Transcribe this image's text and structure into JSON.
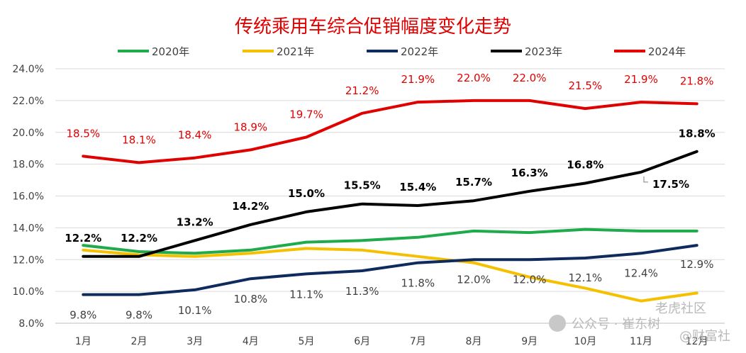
{
  "chart_data": {
    "type": "line",
    "title": "传统乘用车综合促销幅度变化走势",
    "categories": [
      "1月",
      "2月",
      "3月",
      "4月",
      "5月",
      "6月",
      "7月",
      "8月",
      "9月",
      "10月",
      "11月",
      "12月"
    ],
    "yticks": [
      "8.0%",
      "10.0%",
      "12.0%",
      "14.0%",
      "16.0%",
      "18.0%",
      "20.0%",
      "22.0%",
      "24.0%"
    ],
    "ylim": [
      8,
      24
    ],
    "grid": true,
    "legend_position": "top",
    "series": [
      {
        "name": "2020年",
        "color": "#1faa4b",
        "values": [
          12.9,
          12.5,
          12.4,
          12.6,
          13.1,
          13.2,
          13.4,
          13.8,
          13.7,
          13.9,
          13.8,
          13.8
        ],
        "labels": []
      },
      {
        "name": "2021年",
        "color": "#f5c000",
        "values": [
          12.6,
          12.3,
          12.2,
          12.4,
          12.7,
          12.6,
          12.2,
          11.8,
          10.9,
          10.2,
          9.4,
          9.9
        ],
        "labels": []
      },
      {
        "name": "2022年",
        "color": "#0f2a5c",
        "values": [
          9.8,
          9.8,
          10.1,
          10.8,
          11.1,
          11.3,
          11.8,
          12.0,
          12.0,
          12.1,
          12.4,
          12.9
        ],
        "labels": [
          "9.8%",
          "9.8%",
          "10.1%",
          "10.8%",
          "11.1%",
          "11.3%",
          "11.8%",
          "12.0%",
          "12.0%",
          "12.1%",
          "12.4%",
          "12.9%"
        ],
        "label_color": "#404040",
        "label_bold": false
      },
      {
        "name": "2023年",
        "color": "#000000",
        "values": [
          12.2,
          12.2,
          13.2,
          14.2,
          15.0,
          15.5,
          15.4,
          15.7,
          16.3,
          16.8,
          17.5,
          18.8
        ],
        "labels": [
          "12.2%",
          "12.2%",
          "13.2%",
          "14.2%",
          "15.0%",
          "15.5%",
          "15.4%",
          "15.7%",
          "16.3%",
          "16.8%",
          "17.5%",
          "18.8%"
        ],
        "label_color": "#000000",
        "label_bold": true
      },
      {
        "name": "2024年",
        "color": "#e00000",
        "values": [
          18.5,
          18.1,
          18.4,
          18.9,
          19.7,
          21.2,
          21.9,
          22.0,
          22.0,
          21.5,
          21.9,
          21.8
        ],
        "labels": [
          "18.5%",
          "18.1%",
          "18.4%",
          "18.9%",
          "19.7%",
          "21.2%",
          "21.9%",
          "22.0%",
          "22.0%",
          "21.5%",
          "21.9%",
          "21.8%"
        ],
        "label_color": "#e00000",
        "label_bold": false
      }
    ]
  },
  "watermark": {
    "text1": "公众号 · 崔东树",
    "text2": "老虎社区",
    "text3": "@财富社"
  }
}
